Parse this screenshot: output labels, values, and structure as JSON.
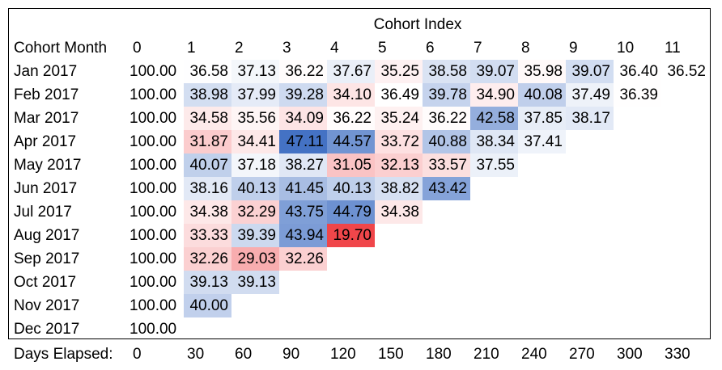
{
  "chart_data": {
    "type": "heatmap",
    "title": "Cohort Index",
    "row_header": "Cohort Month",
    "columns": [
      "0",
      "1",
      "2",
      "3",
      "4",
      "5",
      "6",
      "7",
      "8",
      "9",
      "10",
      "11"
    ],
    "rows": [
      "Jan 2017",
      "Feb 2017",
      "Mar 2017",
      "Apr 2017",
      "May 2017",
      "Jun 2017",
      "Jul 2017",
      "Aug 2017",
      "Sep 2017",
      "Oct 2017",
      "Nov 2017",
      "Dec 2017"
    ],
    "values": [
      [
        "100.00",
        "36.58",
        "37.13",
        "36.22",
        "37.67",
        "35.25",
        "38.58",
        "39.07",
        "35.98",
        "39.07",
        "36.40",
        "36.52"
      ],
      [
        "100.00",
        "38.98",
        "37.99",
        "39.28",
        "34.10",
        "36.49",
        "39.78",
        "34.90",
        "40.08",
        "37.49",
        "36.39"
      ],
      [
        "100.00",
        "34.58",
        "35.56",
        "34.09",
        "36.22",
        "35.24",
        "36.22",
        "42.58",
        "37.85",
        "38.17"
      ],
      [
        "100.00",
        "31.87",
        "34.41",
        "47.11",
        "44.57",
        "33.72",
        "40.88",
        "38.34",
        "37.41"
      ],
      [
        "100.00",
        "40.07",
        "37.18",
        "38.27",
        "31.05",
        "32.13",
        "33.57",
        "37.55"
      ],
      [
        "100.00",
        "38.16",
        "40.13",
        "41.45",
        "40.13",
        "38.82",
        "43.42"
      ],
      [
        "100.00",
        "34.38",
        "32.29",
        "43.75",
        "44.79",
        "34.38"
      ],
      [
        "100.00",
        "33.33",
        "39.39",
        "43.94",
        "19.70"
      ],
      [
        "100.00",
        "32.26",
        "29.03",
        "32.26"
      ],
      [
        "100.00",
        "39.13",
        "39.13"
      ],
      [
        "100.00",
        "40.00"
      ],
      [
        "100.00"
      ]
    ],
    "footer_label": "Days Elapsed:",
    "days_elapsed": [
      "0",
      "30",
      "60",
      "90",
      "120",
      "150",
      "180",
      "210",
      "240",
      "270",
      "300",
      "330"
    ],
    "colormap": {
      "low": "#f0464a",
      "mid": "#ffffff",
      "high": "#4472c4",
      "midpoint": 36.5
    }
  }
}
